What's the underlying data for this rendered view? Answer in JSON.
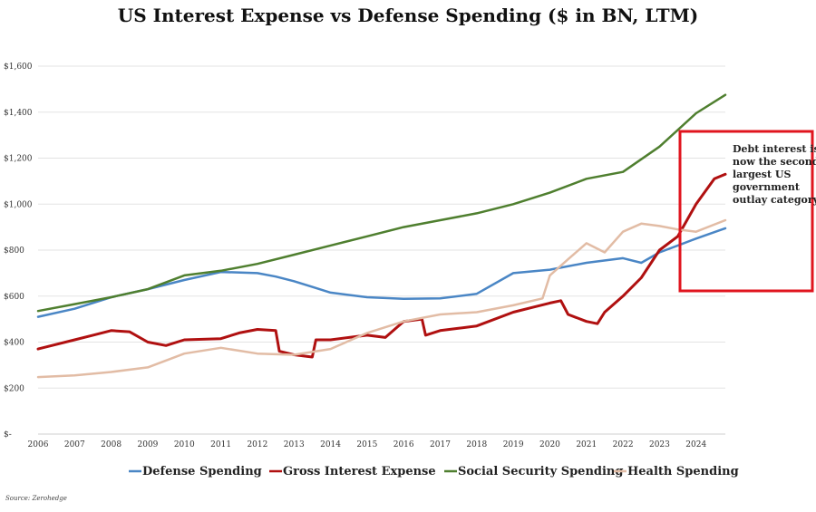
{
  "chart_data": {
    "type": "line",
    "title": "US Interest Expense vs Defense Spending ($ in BN, LTM)",
    "xlabel": "",
    "ylabel": "",
    "xlim": [
      2006,
      2024.8
    ],
    "ylim": [
      0,
      1600
    ],
    "x_ticks": [
      "2006",
      "2007",
      "2008",
      "2009",
      "2010",
      "2011",
      "2012",
      "2013",
      "2014",
      "2015",
      "2016",
      "2017",
      "2018",
      "2019",
      "2020",
      "2021",
      "2022",
      "2023",
      "2024"
    ],
    "y_ticks": [
      {
        "value": 0,
        "label": "$-"
      },
      {
        "value": 200,
        "label": "$200"
      },
      {
        "value": 400,
        "label": "$400"
      },
      {
        "value": 600,
        "label": "$600"
      },
      {
        "value": 800,
        "label": "$800"
      },
      {
        "value": 1000,
        "label": "$1,000"
      },
      {
        "value": 1200,
        "label": "$1,200"
      },
      {
        "value": 1400,
        "label": "$1,400"
      },
      {
        "value": 1600,
        "label": "$1,600"
      }
    ],
    "grid": true,
    "legend_position": "bottom",
    "series": [
      {
        "name": "Defense Spending",
        "color": "#4a86c5",
        "x": [
          2006,
          2007,
          2008,
          2009,
          2010,
          2011,
          2012,
          2012.5,
          2013,
          2013.5,
          2014,
          2015,
          2016,
          2017,
          2018,
          2019,
          2020,
          2021,
          2022,
          2022.5,
          2023,
          2023.5,
          2024,
          2024.8
        ],
        "y": [
          510,
          545,
          595,
          630,
          670,
          705,
          700,
          685,
          665,
          640,
          615,
          595,
          588,
          590,
          610,
          700,
          715,
          745,
          765,
          745,
          790,
          820,
          850,
          895
        ]
      },
      {
        "name": "Gross Interest Expense",
        "color": "#b01010",
        "x": [
          2006,
          2007,
          2007.5,
          2008,
          2008.5,
          2009,
          2009.5,
          2010,
          2011,
          2011.5,
          2012,
          2012.5,
          2012.6,
          2013,
          2013.5,
          2013.6,
          2014,
          2015,
          2015.5,
          2016,
          2016.5,
          2016.6,
          2017,
          2017.5,
          2018,
          2019,
          2019.5,
          2020,
          2020.3,
          2020.5,
          2021,
          2021.3,
          2021.5,
          2022,
          2022.5,
          2023,
          2023.5,
          2024,
          2024.5,
          2024.8
        ],
        "y": [
          370,
          410,
          430,
          450,
          445,
          400,
          385,
          410,
          415,
          440,
          455,
          450,
          360,
          345,
          335,
          410,
          410,
          430,
          420,
          490,
          500,
          430,
          450,
          460,
          470,
          530,
          550,
          570,
          580,
          520,
          490,
          480,
          530,
          600,
          680,
          800,
          860,
          1000,
          1110,
          1130
        ]
      },
      {
        "name": "Social Security Spending",
        "color": "#4f7f2f",
        "x": [
          2006,
          2007,
          2008,
          2009,
          2010,
          2011,
          2012,
          2013,
          2014,
          2015,
          2016,
          2017,
          2018,
          2019,
          2020,
          2021,
          2022,
          2023,
          2024,
          2024.8
        ],
        "y": [
          535,
          565,
          595,
          630,
          690,
          710,
          740,
          780,
          820,
          860,
          900,
          930,
          960,
          1000,
          1050,
          1110,
          1140,
          1250,
          1395,
          1475
        ]
      },
      {
        "name": "Health Spending",
        "color": "#e2bca5",
        "x": [
          2006,
          2007,
          2008,
          2009,
          2010,
          2011,
          2012,
          2013,
          2014,
          2015,
          2016,
          2017,
          2018,
          2019,
          2019.8,
          2020,
          2020.5,
          2021,
          2021.5,
          2022,
          2022.5,
          2023,
          2023.5,
          2024,
          2024.8
        ],
        "y": [
          248,
          255,
          270,
          290,
          350,
          375,
          350,
          345,
          370,
          440,
          490,
          520,
          530,
          560,
          590,
          690,
          760,
          830,
          790,
          880,
          915,
          905,
          890,
          880,
          930
        ]
      }
    ],
    "annotation": "Debt interest is now the second largest US government outlay category",
    "annotation_lines": [
      "Debt interest is",
      "now the second",
      "largest US",
      "government",
      "outlay category"
    ],
    "annotation_box_color": "#e0141e",
    "source": "Source: Zerohedge"
  }
}
